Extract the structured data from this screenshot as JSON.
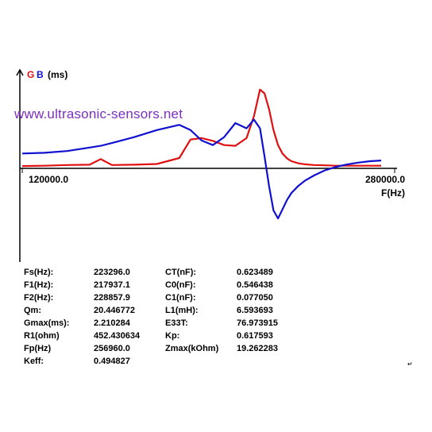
{
  "legend": {
    "g": "G",
    "b": "B",
    "unit": "(ms)"
  },
  "watermark": "www.ultrasonic-sensors.net",
  "axis": {
    "x_start_label": "120000.0",
    "x_end_label": "280000.0",
    "x_unit": "F(Hz)"
  },
  "colors": {
    "g_series": "#e01010",
    "b_series": "#1010d0",
    "watermark": "#7a2fbf",
    "axis": "#000000"
  },
  "params": [
    {
      "label1": "Fs(Hz):",
      "value1": "223296.0",
      "label2": "CT(nF):",
      "value2": "0.623489"
    },
    {
      "label1": "F1(Hz):",
      "value1": "217937.1",
      "label2": "C0(nF):",
      "value2": "0.546438"
    },
    {
      "label1": "F2(Hz):",
      "value1": "228857.9",
      "label2": "C1(nF):",
      "value2": "0.077050"
    },
    {
      "label1": "Qm:",
      "value1": "20.446772",
      "label2": "L1(mH):",
      "value2": "6.593693"
    },
    {
      "label1": "Gmax(ms):",
      "value1": "2.210284",
      "label2": "E33T:",
      "value2": "76.973915"
    },
    {
      "label1": "R1(ohm)",
      "value1": "452.430634",
      "label2": "Kp:",
      "value2": "0.617593"
    },
    {
      "label1": "Fp(Hz)",
      "value1": "256960.0",
      "label2": "Zmax(kOhm)",
      "value2": "19.262283"
    },
    {
      "label1": "Keff:",
      "value1": "0.494827",
      "label2": "",
      "value2": ""
    }
  ],
  "corner_mark": "↵",
  "chart_data": {
    "type": "line",
    "x_range": [
      120000,
      280000
    ],
    "x": [
      120000,
      130000,
      140000,
      150000,
      155000,
      160000,
      170000,
      180000,
      190000,
      195000,
      200000,
      205000,
      210000,
      215000,
      220000,
      223300,
      226000,
      228000,
      230000,
      232000,
      234000,
      236000,
      238000,
      240000,
      243000,
      246000,
      250000,
      255000,
      260000,
      265000,
      270000,
      275000,
      280000
    ],
    "series": [
      {
        "name": "G",
        "values": [
          0.02,
          0.03,
          0.05,
          0.06,
          0.22,
          0.05,
          0.06,
          0.08,
          0.25,
          0.78,
          0.82,
          0.74,
          0.62,
          0.6,
          0.82,
          1.45,
          2.21,
          2.1,
          1.65,
          1.05,
          0.62,
          0.38,
          0.24,
          0.16,
          0.1,
          0.07,
          0.05,
          0.04,
          0.03,
          0.03,
          0.03,
          0.03,
          0.03
        ]
      },
      {
        "name": "B",
        "values": [
          0.38,
          0.4,
          0.45,
          0.55,
          0.6,
          0.68,
          0.85,
          1.05,
          1.2,
          1.05,
          0.75,
          0.62,
          0.85,
          1.25,
          1.1,
          1.35,
          1.1,
          0.3,
          -0.55,
          -1.25,
          -1.48,
          -1.22,
          -0.95,
          -0.75,
          -0.55,
          -0.4,
          -0.25,
          -0.1,
          0.0,
          0.07,
          0.12,
          0.16,
          0.18
        ]
      }
    ]
  }
}
